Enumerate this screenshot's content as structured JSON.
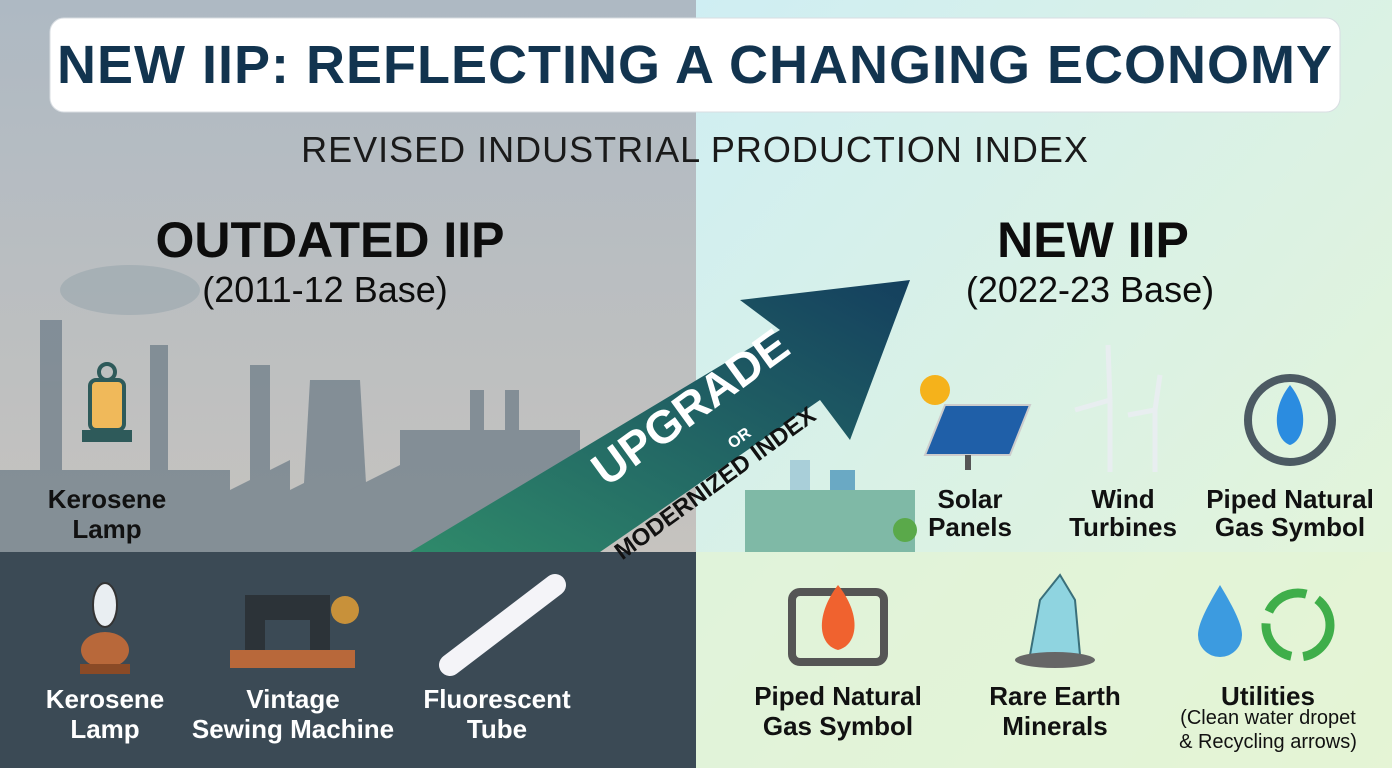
{
  "header": {
    "title": "NEW IIP: REFLECTING A CHANGING ECONOMY",
    "subtitle": "REVISED INDUSTRIAL PRODUCTION INDEX"
  },
  "left": {
    "heading": "OUTDATED IIP",
    "base": "(2011-12 Base)",
    "featured": {
      "lines": [
        "Kerosene",
        "Lamp"
      ]
    },
    "items": [
      {
        "lines": [
          "Kerosene",
          "Lamp"
        ]
      },
      {
        "lines": [
          "Vintage",
          "Sewing Machine"
        ]
      },
      {
        "lines": [
          "Fluorescent",
          "Tube"
        ]
      }
    ]
  },
  "arrow": {
    "main": "UPGRADE",
    "joiner": "OR",
    "alt": "MODERNIZED INDEX"
  },
  "right": {
    "heading": "NEW IIP",
    "base": "(2022-23 Base)",
    "top_items": [
      {
        "lines": [
          "Solar",
          "Panels"
        ]
      },
      {
        "lines": [
          "Wind",
          "Turbines"
        ]
      },
      {
        "lines": [
          "Piped Natural",
          "Gas Symbol"
        ]
      }
    ],
    "bottom_items": [
      {
        "lines": [
          "Piped Natural",
          "Gas Symbol"
        ]
      },
      {
        "lines": [
          "Rare Earth",
          "Minerals"
        ]
      },
      {
        "lines": [
          "Utilities"
        ],
        "note": [
          "(Clean water dropet",
          "& Recycling arrows)"
        ]
      }
    ]
  }
}
